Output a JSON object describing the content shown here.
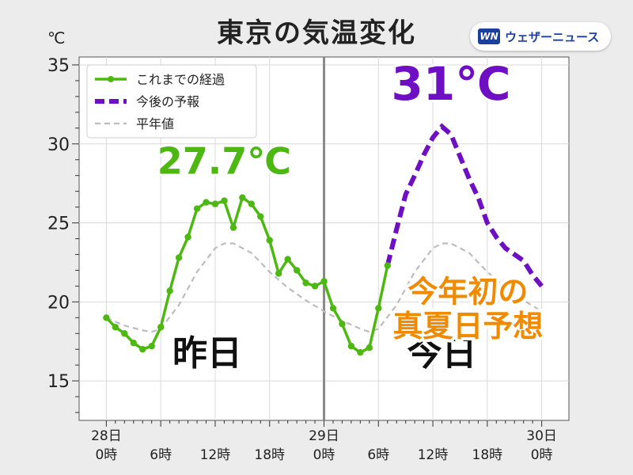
{
  "page": {
    "title": "東京の気温変化",
    "unit": "℃",
    "brand_logo": "WN",
    "brand_name": "ウェザーニュース"
  },
  "chart_data": {
    "type": "line",
    "title": "東京の気温変化",
    "ylabel": "℃",
    "ylim": [
      12.5,
      35.5
    ],
    "xlim": [
      -3,
      51
    ],
    "yticks": [
      15,
      20,
      25,
      30,
      35
    ],
    "xtick_labels": [
      {
        "x": 0,
        "line1": "28日",
        "line2": "0時"
      },
      {
        "x": 6,
        "line1": "",
        "line2": "6時"
      },
      {
        "x": 12,
        "line1": "",
        "line2": "12時"
      },
      {
        "x": 18,
        "line1": "",
        "line2": "18時"
      },
      {
        "x": 24,
        "line1": "29日",
        "line2": "0時"
      },
      {
        "x": 30,
        "line1": "",
        "line2": "6時"
      },
      {
        "x": 36,
        "line1": "",
        "line2": "12時"
      },
      {
        "x": 42,
        "line1": "",
        "line2": "18時"
      },
      {
        "x": 48,
        "line1": "30日",
        "line2": "0時"
      }
    ],
    "grid": true,
    "legend_position": "top-left",
    "colors": {
      "observed": "#4cb811",
      "forecast": "#6f0fc4",
      "normal": "#bdbdbd",
      "divider": "#8a8a8a",
      "note": "#f08a00",
      "plot_bg": "#ffffff"
    },
    "series": [
      {
        "name": "これまでの経過",
        "style": "solid-markers",
        "x": [
          0,
          1,
          2,
          3,
          4,
          5,
          6,
          7,
          8,
          9,
          10,
          11,
          12,
          13,
          14,
          15,
          16,
          17,
          18,
          19,
          20,
          21,
          22,
          23,
          24,
          25,
          26,
          27,
          28,
          29,
          30,
          31
        ],
        "y": [
          19.0,
          18.4,
          18.0,
          17.4,
          17.0,
          17.2,
          18.4,
          20.7,
          22.8,
          24.1,
          25.9,
          26.3,
          26.2,
          26.4,
          24.7,
          26.6,
          26.2,
          25.4,
          23.9,
          21.8,
          22.7,
          22.0,
          21.2,
          21.0,
          21.3,
          19.6,
          18.6,
          17.2,
          16.8,
          17.1,
          19.6,
          22.3
        ]
      },
      {
        "name": "今後の予報",
        "style": "dashed-thick",
        "x": [
          31,
          32,
          33,
          34,
          35,
          36,
          37,
          38,
          39,
          40,
          41,
          42,
          43,
          44,
          45,
          46,
          47,
          48
        ],
        "y": [
          22.3,
          24.6,
          26.8,
          28.0,
          29.3,
          30.4,
          31.1,
          30.6,
          29.2,
          27.8,
          26.6,
          25.0,
          24.1,
          23.4,
          23.0,
          22.6,
          21.7,
          21.0
        ]
      },
      {
        "name": "平年値",
        "style": "dashed-thin",
        "x": [
          0,
          2,
          4,
          5,
          6,
          8,
          10,
          12,
          13,
          14,
          16,
          18,
          20,
          22,
          24,
          26,
          28,
          29,
          30,
          32,
          34,
          36,
          37,
          38,
          40,
          42,
          44,
          46,
          48
        ],
        "y": [
          19.0,
          18.5,
          18.2,
          18.1,
          18.3,
          19.8,
          21.9,
          23.4,
          23.7,
          23.7,
          23.1,
          21.9,
          20.9,
          20.1,
          19.4,
          18.8,
          18.3,
          18.1,
          18.3,
          19.8,
          21.9,
          23.4,
          23.7,
          23.7,
          23.1,
          21.9,
          20.9,
          20.1,
          19.4
        ]
      }
    ],
    "annotations": {
      "max_yesterday": {
        "text": "27.7℃",
        "x": 13,
        "y": 28.1
      },
      "max_today": {
        "text": "31℃",
        "x": 38,
        "y": 32.8
      },
      "label_yesterday": {
        "text": "昨日",
        "x": 12,
        "y": 16.2
      },
      "label_today": {
        "text": "今日",
        "x": 37,
        "y": 16.2
      },
      "note_line1": {
        "text": "今年初の",
        "x": 39,
        "y": 20.0
      },
      "note_line2": {
        "text": "真夏日予想",
        "x": 39,
        "y": 17.8
      }
    }
  }
}
